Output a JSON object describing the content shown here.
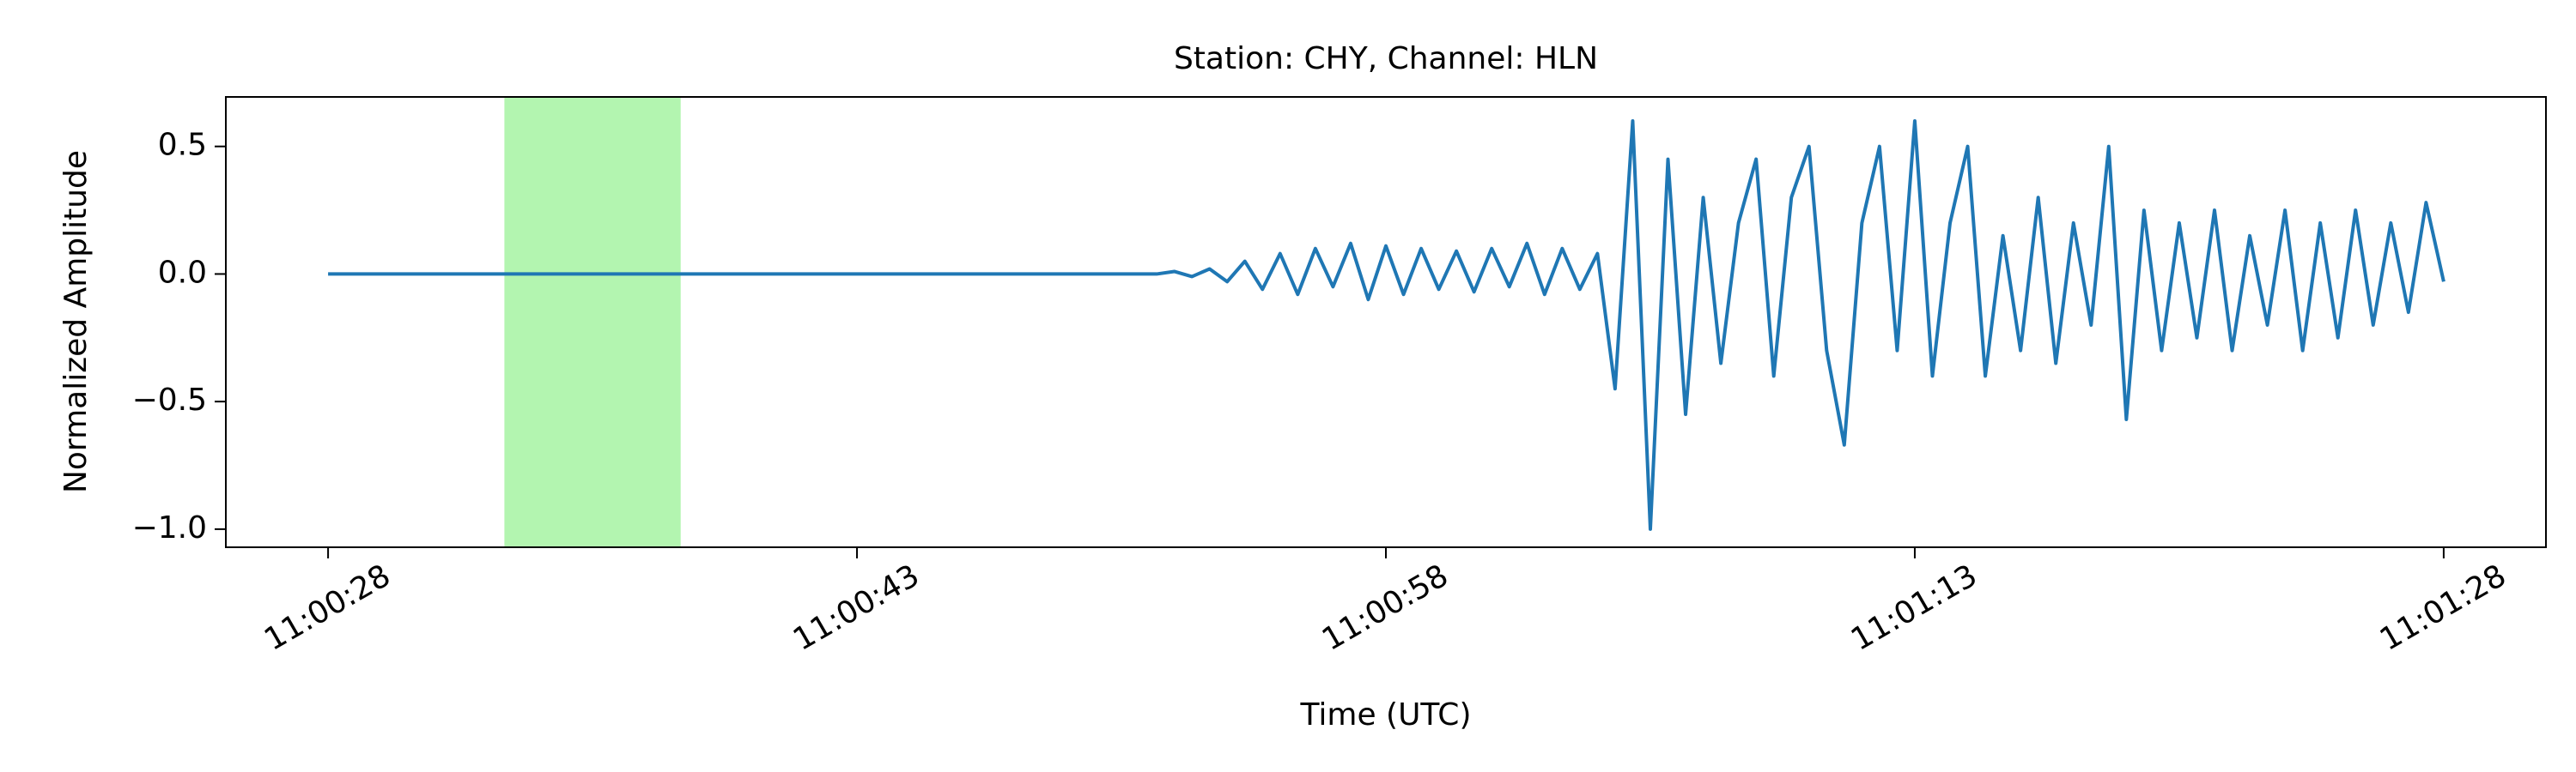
{
  "chart_data": {
    "type": "line",
    "title": "Station: CHY, Channel: HLN",
    "xlabel": "Time (UTC)",
    "ylabel": "Normalized Amplitude",
    "color": "#1f77b4",
    "highlight": {
      "xstart": "11:00:33",
      "xend": "11:00:38",
      "color": "#b3f5b0"
    },
    "xlim": [
      "11:00:25.1",
      "11:01:30.9"
    ],
    "xticks": [
      "11:00:28",
      "11:00:43",
      "11:00:58",
      "11:01:13",
      "11:01:28"
    ],
    "ylim": [
      -1.071,
      0.694
    ],
    "yticks": [
      {
        "value": -1.0,
        "label": "−1.0"
      },
      {
        "value": -0.5,
        "label": "−0.5"
      },
      {
        "value": 0.0,
        "label": "0.0"
      },
      {
        "value": 0.5,
        "label": "0.5"
      }
    ],
    "x": [
      "11:00:28",
      "11:00:28.5",
      "11:00:29",
      "11:00:29.5",
      "11:00:30",
      "11:00:30.5",
      "11:00:31",
      "11:00:31.5",
      "11:00:32",
      "11:00:32.5",
      "11:00:33",
      "11:00:33.5",
      "11:00:34",
      "11:00:34.5",
      "11:00:35",
      "11:00:35.5",
      "11:00:36",
      "11:00:36.5",
      "11:00:37",
      "11:00:37.5",
      "11:00:38",
      "11:00:38.5",
      "11:00:39",
      "11:00:39.5",
      "11:00:40",
      "11:00:40.5",
      "11:00:41",
      "11:00:41.5",
      "11:00:42",
      "11:00:42.5",
      "11:00:43",
      "11:00:43.5",
      "11:00:44",
      "11:00:44.5",
      "11:00:45",
      "11:00:45.5",
      "11:00:46",
      "11:00:46.5",
      "11:00:47",
      "11:00:47.5",
      "11:00:48",
      "11:00:48.5",
      "11:00:49",
      "11:00:49.5",
      "11:00:50",
      "11:00:50.5",
      "11:00:51",
      "11:00:51.5",
      "11:00:52",
      "11:00:52.5",
      "11:00:53",
      "11:00:53.5",
      "11:00:54",
      "11:00:54.5",
      "11:00:55",
      "11:00:55.5",
      "11:00:56",
      "11:00:56.5",
      "11:00:57",
      "11:00:57.5",
      "11:00:58",
      "11:00:58.5",
      "11:00:59",
      "11:00:59.5",
      "11:01:00",
      "11:01:00.5",
      "11:01:01",
      "11:01:01.5",
      "11:01:02",
      "11:01:02.5",
      "11:01:03",
      "11:01:03.5",
      "11:01:04",
      "11:01:04.5",
      "11:01:05",
      "11:01:05.5",
      "11:01:06",
      "11:01:06.5",
      "11:01:07",
      "11:01:07.5",
      "11:01:08",
      "11:01:08.5",
      "11:01:09",
      "11:01:09.5",
      "11:01:10",
      "11:01:10.5",
      "11:01:11",
      "11:01:11.5",
      "11:01:12",
      "11:01:12.5",
      "11:01:13",
      "11:01:13.5",
      "11:01:14",
      "11:01:14.5",
      "11:01:15",
      "11:01:15.5",
      "11:01:16",
      "11:01:16.5",
      "11:01:17",
      "11:01:17.5",
      "11:01:18",
      "11:01:18.5",
      "11:01:19",
      "11:01:19.5",
      "11:01:20",
      "11:01:20.5",
      "11:01:21",
      "11:01:21.5",
      "11:01:22",
      "11:01:22.5",
      "11:01:23",
      "11:01:23.5",
      "11:01:24",
      "11:01:24.5",
      "11:01:25",
      "11:01:25.5",
      "11:01:26",
      "11:01:26.5",
      "11:01:27",
      "11:01:27.5",
      "11:01:28"
    ],
    "values": [
      0,
      0,
      0,
      0,
      0,
      0,
      0,
      0,
      0,
      0,
      0,
      0,
      0,
      0,
      0,
      0,
      0,
      0,
      0,
      0,
      0,
      0,
      0,
      0,
      0,
      0,
      0,
      0,
      0,
      0,
      0,
      0,
      0,
      0,
      0,
      0,
      0,
      0,
      0,
      0,
      0,
      0,
      0,
      0,
      0,
      0,
      0,
      0,
      0.01,
      -0.01,
      0.02,
      -0.03,
      0.05,
      -0.06,
      0.08,
      -0.08,
      0.1,
      -0.05,
      0.12,
      -0.1,
      0.11,
      -0.08,
      0.1,
      -0.06,
      0.09,
      -0.07,
      0.1,
      -0.05,
      0.12,
      -0.08,
      0.1,
      -0.06,
      0.08,
      -0.45,
      0.6,
      -1.0,
      0.45,
      -0.55,
      0.3,
      -0.35,
      0.2,
      0.45,
      -0.4,
      0.3,
      0.5,
      -0.3,
      -0.67,
      0.2,
      0.5,
      -0.3,
      0.6,
      -0.4,
      0.2,
      0.5,
      -0.4,
      0.15,
      -0.3,
      0.3,
      -0.35,
      0.2,
      -0.2,
      0.5,
      -0.57,
      0.25,
      -0.3,
      0.2,
      -0.25,
      0.25,
      -0.3,
      0.15,
      -0.2,
      0.25,
      -0.3,
      0.2,
      -0.25,
      0.25,
      -0.2,
      0.2,
      -0.15,
      0.28,
      -0.03
    ]
  }
}
